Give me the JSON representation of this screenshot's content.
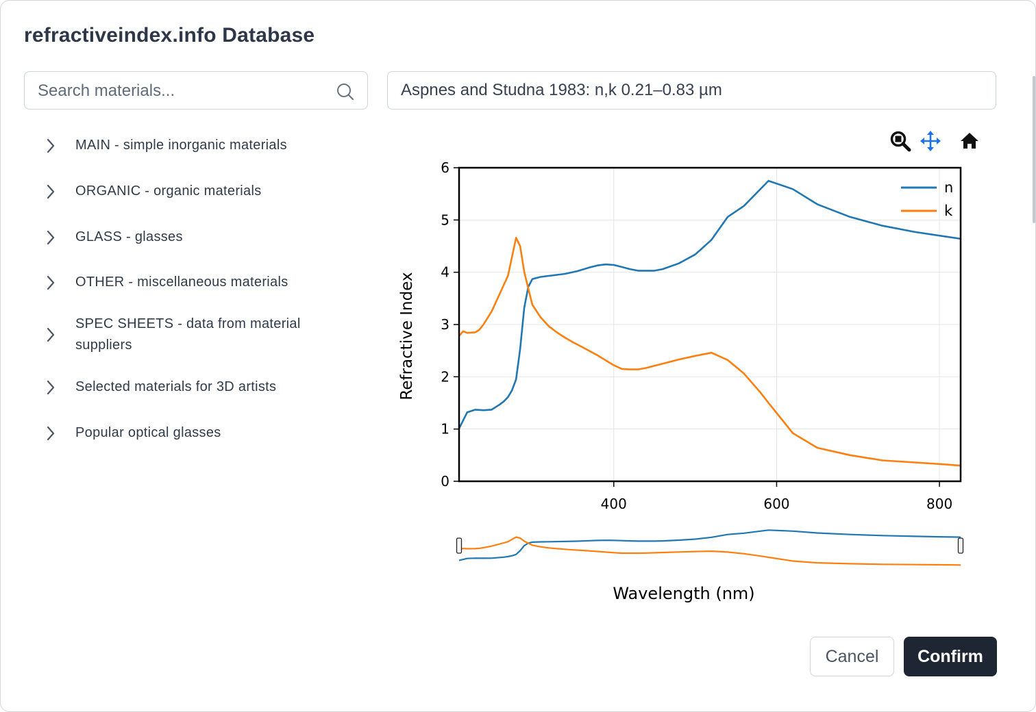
{
  "dialog": {
    "title": "refractiveindex.info Database"
  },
  "search": {
    "placeholder": "Search materials...",
    "value": ""
  },
  "source": {
    "selected": "Aspnes and Studna 1983: n,k 0.21–0.83 µm"
  },
  "tree": {
    "items": [
      {
        "label": "MAIN - simple inorganic materials"
      },
      {
        "label": "ORGANIC - organic materials"
      },
      {
        "label": "GLASS - glasses"
      },
      {
        "label": "OTHER - miscellaneous materials"
      },
      {
        "label": "SPEC SHEETS - data from material suppliers"
      },
      {
        "label": "Selected materials for 3D artists"
      },
      {
        "label": "Popular optical glasses"
      }
    ]
  },
  "toolbar": {
    "zoom_icon": "zoom-icon",
    "pan_icon": "pan-icon",
    "home_icon": "home-icon",
    "active_color": "#1a73e8"
  },
  "chart_data": {
    "type": "line",
    "xlabel": "Wavelength (nm)",
    "ylabel": "Refractive Index",
    "xlim": [
      210,
      826
    ],
    "ylim": [
      0,
      6
    ],
    "xticks": [
      400,
      600,
      800
    ],
    "yticks": [
      0,
      1,
      2,
      3,
      4,
      5,
      6
    ],
    "grid": true,
    "legend": "top-right",
    "range_slider": true,
    "series": [
      {
        "name": "n",
        "color": "#1f77b4",
        "x": [
          210,
          220,
          230,
          240,
          250,
          260,
          265,
          270,
          275,
          280,
          285,
          290,
          295,
          300,
          310,
          320,
          340,
          355,
          370,
          380,
          390,
          400,
          410,
          420,
          430,
          440,
          450,
          460,
          480,
          500,
          520,
          540,
          560,
          590,
          620,
          650,
          690,
          730,
          770,
          800,
          826
        ],
        "y": [
          1.01,
          1.32,
          1.37,
          1.36,
          1.37,
          1.47,
          1.53,
          1.61,
          1.74,
          1.95,
          2.53,
          3.32,
          3.72,
          3.87,
          3.91,
          3.93,
          3.97,
          4.02,
          4.09,
          4.13,
          4.15,
          4.14,
          4.1,
          4.06,
          4.03,
          4.03,
          4.03,
          4.06,
          4.17,
          4.34,
          4.62,
          5.06,
          5.27,
          5.75,
          5.59,
          5.3,
          5.06,
          4.89,
          4.77,
          4.7,
          4.64
        ]
      },
      {
        "name": "k",
        "color": "#ff7f0e",
        "x": [
          210,
          215,
          220,
          230,
          235,
          240,
          250,
          260,
          270,
          275,
          280,
          285,
          290,
          295,
          300,
          310,
          320,
          330,
          340,
          350,
          360,
          380,
          400,
          410,
          420,
          430,
          440,
          460,
          480,
          500,
          520,
          540,
          560,
          580,
          590,
          620,
          650,
          690,
          730,
          770,
          800,
          826
        ],
        "y": [
          2.78,
          2.87,
          2.84,
          2.85,
          2.9,
          3.0,
          3.25,
          3.59,
          3.93,
          4.29,
          4.66,
          4.5,
          4.01,
          3.69,
          3.38,
          3.14,
          2.97,
          2.85,
          2.75,
          2.66,
          2.58,
          2.41,
          2.22,
          2.15,
          2.14,
          2.14,
          2.17,
          2.25,
          2.33,
          2.4,
          2.46,
          2.32,
          2.06,
          1.7,
          1.5,
          0.92,
          0.64,
          0.5,
          0.4,
          0.36,
          0.33,
          0.3
        ]
      }
    ]
  },
  "buttons": {
    "cancel": "Cancel",
    "confirm": "Confirm"
  }
}
